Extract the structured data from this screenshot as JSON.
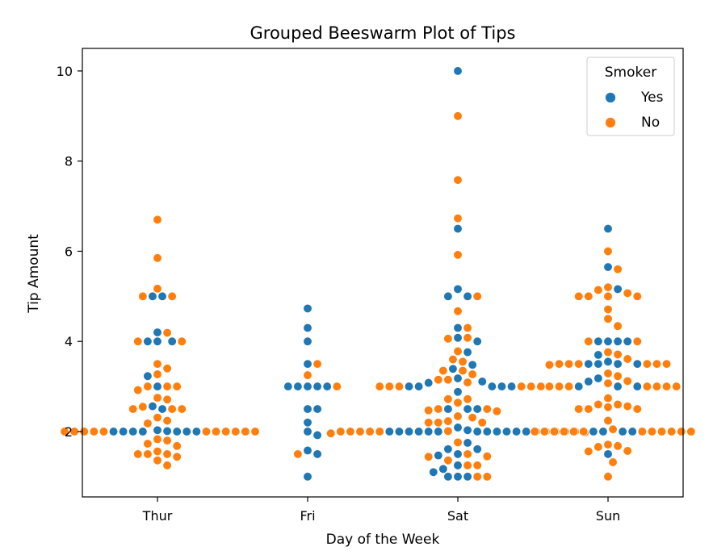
{
  "colors": {
    "Yes": "#1f77b4",
    "No": "#ff7f0e"
  },
  "chart_data": {
    "type": "scatter",
    "subtype": "beeswarm",
    "title": "Grouped Beeswarm Plot of Tips",
    "xlabel": "Day of the Week",
    "ylabel": "Tip Amount",
    "categories": [
      "Thur",
      "Fri",
      "Sat",
      "Sun"
    ],
    "yticks": [
      "2",
      "4",
      "6",
      "8",
      "10"
    ],
    "ylim": [
      0.55,
      10.5
    ],
    "legend": {
      "title": "Smoker",
      "entries": [
        "Yes",
        "No"
      ],
      "placement": "upper right"
    },
    "series": [
      {
        "name": "Yes",
        "data": {
          "Thur": [
            2.0,
            2.0,
            2.0,
            2.0,
            2.0,
            2.01,
            2.03,
            5.0,
            5.0,
            4.2,
            4.0,
            4.0,
            4.0,
            3.23,
            3.0,
            2.56,
            2.5,
            2.0,
            2.0
          ],
          "Fri": [
            4.73,
            4.3,
            4.0,
            3.5,
            3.0,
            3.0,
            3.0,
            3.0,
            3.0,
            2.5,
            2.5,
            2.2,
            2.0,
            1.92,
            1.58,
            1.5,
            1.0
          ],
          "Sat": [
            10.0,
            6.5,
            5.16,
            5.0,
            5.0,
            4.3,
            4.08,
            4.0,
            3.76,
            3.48,
            3.39,
            3.18,
            3.11,
            3.08,
            3.0,
            3.0,
            3.0,
            3.0,
            3.0,
            2.88,
            2.5,
            2.5,
            2.5,
            2.03,
            2.09,
            2.0,
            2.0,
            2.0,
            2.0,
            2.0,
            2.0,
            2.0,
            2.0,
            2.0,
            2.0,
            2.0,
            2.0,
            1.75,
            1.61,
            1.61,
            1.5,
            1.47,
            1.25,
            1.17,
            1.1,
            1.0,
            1.0,
            1.0
          ],
          "Sun": [
            6.5,
            5.65,
            5.16,
            4.0,
            4.0,
            4.0,
            4.0,
            3.7,
            3.55,
            3.5,
            3.5,
            3.5,
            3.5,
            3.18,
            3.11,
            3.0,
            3.0,
            3.0,
            2.0,
            2.0,
            2.0,
            2.0,
            1.5
          ]
        }
      },
      {
        "name": "No",
        "data": {
          "Thur": [
            6.7,
            5.85,
            5.17,
            5.0,
            5.0,
            4.19,
            4.0,
            4.0,
            3.5,
            3.4,
            3.27,
            3.0,
            3.0,
            3.0,
            2.92,
            2.75,
            2.71,
            2.55,
            2.5,
            2.5,
            2.5,
            2.31,
            2.24,
            2.18,
            2.0,
            2.0,
            2.0,
            2.0,
            2.0,
            2.0,
            2.0,
            2.0,
            2.0,
            2.0,
            2.0,
            1.83,
            1.8,
            1.73,
            1.68,
            1.56,
            1.5,
            1.5,
            1.5,
            1.44,
            1.36,
            1.25
          ],
          "Fri": [
            3.5,
            3.25,
            3.0,
            1.5
          ],
          "Sat": [
            9.0,
            7.58,
            6.73,
            5.92,
            5.0,
            4.67,
            4.3,
            4.08,
            4.06,
            3.78,
            3.6,
            3.55,
            3.35,
            3.35,
            3.27,
            3.15,
            3.15,
            3.09,
            3.0,
            3.0,
            3.0,
            3.0,
            3.0,
            3.0,
            2.72,
            2.72,
            2.64,
            2.5,
            2.5,
            2.47,
            2.45,
            2.34,
            2.31,
            2.23,
            2.2,
            2.2,
            2.2,
            2.01,
            2.0,
            2.0,
            2.0,
            2.0,
            2.0,
            2.0,
            2.0,
            2.0,
            2.0,
            2.0,
            1.98,
            1.96,
            1.76,
            1.5,
            1.45,
            1.44,
            1.36,
            1.25,
            1.25,
            1.0,
            1.0
          ],
          "Sun": [
            6.0,
            5.6,
            5.2,
            5.14,
            5.07,
            5.0,
            5.0,
            5.0,
            5.0,
            4.71,
            4.5,
            4.34,
            4.0,
            4.0,
            3.76,
            3.71,
            3.61,
            3.5,
            3.5,
            3.5,
            3.5,
            3.5,
            3.5,
            3.48,
            3.29,
            3.23,
            3.12,
            3.07,
            3.0,
            3.0,
            3.0,
            3.0,
            3.0,
            3.0,
            3.0,
            2.74,
            2.6,
            2.6,
            2.56,
            2.54,
            2.5,
            2.5,
            2.5,
            2.24,
            2.05,
            2.0,
            2.0,
            2.0,
            2.0,
            2.0,
            2.0,
            2.0,
            2.0,
            2.0,
            2.0,
            2.0,
            2.0,
            1.71,
            1.68,
            1.66,
            1.57,
            1.56,
            1.32,
            1.0
          ]
        }
      }
    ]
  }
}
